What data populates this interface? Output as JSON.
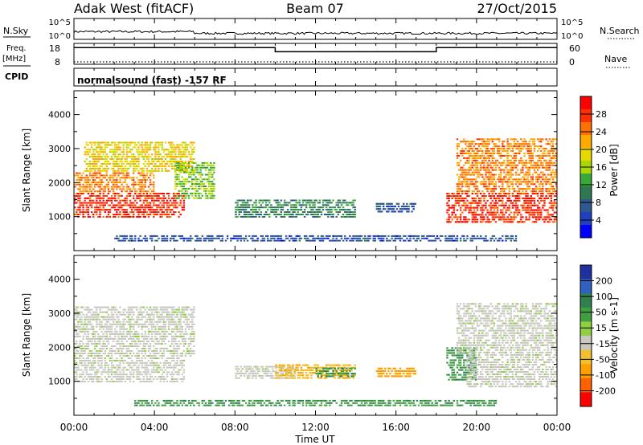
{
  "header": {
    "station": "Adak West (fitACF)",
    "beam": "Beam 07",
    "date": "27/Oct/2015"
  },
  "strip": {
    "nsky_label": "N.Sky",
    "nsearch_label": "N.Search",
    "nsky_ticks": [
      "10^5",
      "10^0"
    ],
    "nsearch_ticks": [
      "10^5",
      "10^0"
    ],
    "freq_label_1": "Freq.",
    "freq_label_2": "[MHz]",
    "freq_ticks": [
      "18",
      "8"
    ],
    "nave_label": "Nave",
    "nave_ticks": [
      "60",
      "0"
    ],
    "cpid_label": "CPID",
    "cpid_text": "normalsound (fast) -157 RF"
  },
  "axes": {
    "x_ticks": [
      "00:00",
      "04:00",
      "08:00",
      "12:00",
      "16:00",
      "20:00",
      "00:00"
    ],
    "x_label": "Time UT",
    "y_label": "Slant Range [km]",
    "y_ticks": [
      "4000",
      "3000",
      "2000",
      "1000"
    ]
  },
  "colorbars": {
    "power": {
      "label": "Power [dB]",
      "ticks": [
        "28",
        "24",
        "20",
        "16",
        "12",
        "8",
        "4"
      ],
      "colors": [
        "#ff0000",
        "#ff3000",
        "#ff7000",
        "#ffa800",
        "#e8d800",
        "#a8d800",
        "#38a838",
        "#307850",
        "#305890",
        "#2040c0",
        "#0000ff"
      ]
    },
    "velocity": {
      "label": "Velocity [m s-1]",
      "ticks": [
        "200",
        "100",
        "50",
        "15",
        "-15",
        "-50",
        "-100",
        "-200"
      ],
      "colors": [
        "#2030a0",
        "#3060c0",
        "#308050",
        "#40a040",
        "#90d040",
        "#c8c8c0",
        "#f0c030",
        "#ffa000",
        "#ff6000",
        "#ff0000"
      ]
    }
  },
  "chart_data": [
    {
      "type": "line",
      "name": "N.Sky",
      "x_range_hours": [
        0,
        24
      ],
      "y_scale": "log",
      "y_range": [
        1,
        100000
      ]
    },
    {
      "type": "line",
      "name": "Freq.",
      "x_range_hours": [
        0,
        24
      ],
      "y_range_mhz": [
        8,
        18
      ],
      "series": [
        {
          "x": [
            0,
            10,
            10,
            18,
            18,
            24
          ],
          "y": [
            16,
            16,
            14,
            14,
            16,
            16
          ]
        }
      ],
      "nave_range": [
        0,
        60
      ],
      "nave_value": 7
    },
    {
      "type": "heatmap",
      "name": "Power",
      "quantity": "Power [dB]",
      "x_range_hours": [
        0,
        24
      ],
      "y_range_km": [
        200,
        4500
      ],
      "regions": [
        {
          "x0": 0.0,
          "x1": 5.5,
          "y0": 950,
          "y1": 1700,
          "value": 28
        },
        {
          "x0": 0.0,
          "x1": 4.0,
          "y0": 1700,
          "y1": 2300,
          "value": 24
        },
        {
          "x0": 0.5,
          "x1": 6.0,
          "y0": 2300,
          "y1": 3200,
          "value": 20
        },
        {
          "x0": 5.0,
          "x1": 7.0,
          "y0": 1500,
          "y1": 2600,
          "value": 16
        },
        {
          "x0": 8.0,
          "x1": 14.0,
          "y0": 950,
          "y1": 1500,
          "value": 12
        },
        {
          "x0": 15.0,
          "x1": 17.0,
          "y0": 1100,
          "y1": 1400,
          "value": 8
        },
        {
          "x0": 18.5,
          "x1": 24.0,
          "y0": 800,
          "y1": 1700,
          "value": 28
        },
        {
          "x0": 19.0,
          "x1": 24.0,
          "y0": 1700,
          "y1": 3300,
          "value": 24
        },
        {
          "x0": 2.0,
          "x1": 22.0,
          "y0": 250,
          "y1": 450,
          "value": 8
        }
      ]
    },
    {
      "type": "heatmap",
      "name": "Velocity",
      "quantity": "Velocity [m s-1]",
      "x_range_hours": [
        0,
        24
      ],
      "y_range_km": [
        200,
        4500
      ],
      "regions": [
        {
          "x0": 0.0,
          "x1": 5.5,
          "y0": 950,
          "y1": 1700,
          "value": 0
        },
        {
          "x0": 0.0,
          "x1": 6.0,
          "y0": 1700,
          "y1": 3200,
          "value": 0
        },
        {
          "x0": 8.0,
          "x1": 11.0,
          "y0": 1050,
          "y1": 1450,
          "value": 0
        },
        {
          "x0": 10.0,
          "x1": 14.0,
          "y0": 1050,
          "y1": 1500,
          "value": -50
        },
        {
          "x0": 12.0,
          "x1": 14.0,
          "y0": 1100,
          "y1": 1400,
          "value": 50
        },
        {
          "x0": 15.0,
          "x1": 17.0,
          "y0": 1100,
          "y1": 1400,
          "value": -100
        },
        {
          "x0": 18.5,
          "x1": 20.0,
          "y0": 1000,
          "y1": 2000,
          "value": 50
        },
        {
          "x0": 19.5,
          "x1": 24.0,
          "y0": 800,
          "y1": 1800,
          "value": 0
        },
        {
          "x0": 19.0,
          "x1": 24.0,
          "y0": 1800,
          "y1": 3300,
          "value": 0
        },
        {
          "x0": 3.0,
          "x1": 21.0,
          "y0": 250,
          "y1": 450,
          "value": 50
        }
      ]
    }
  ]
}
